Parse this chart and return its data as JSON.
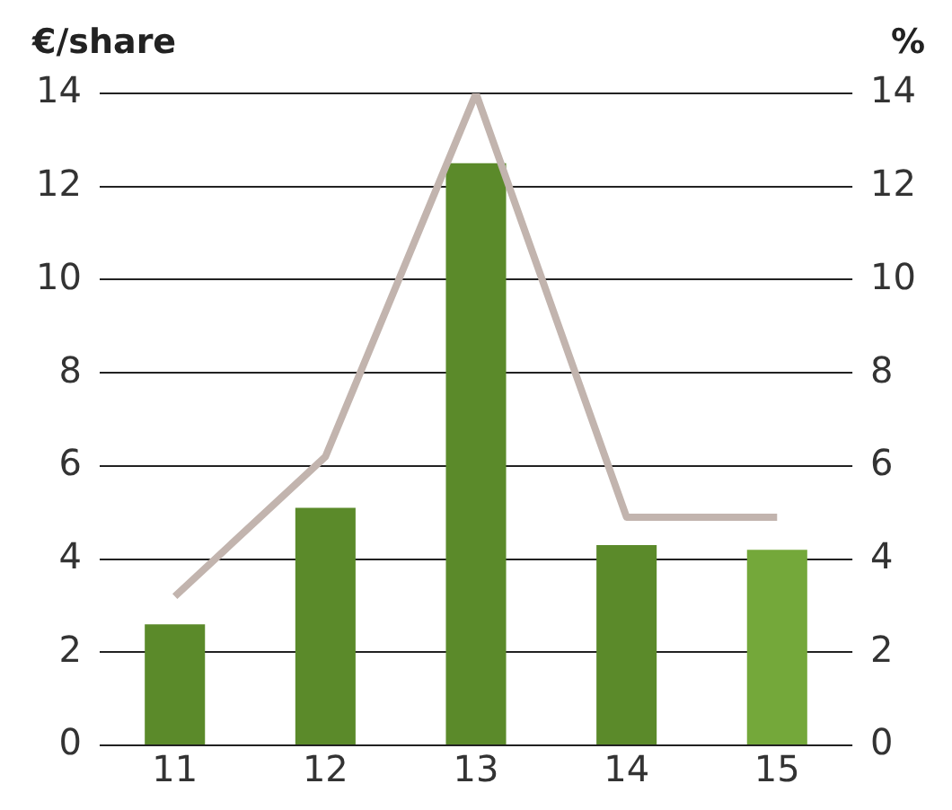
{
  "chart_data": {
    "type": "bar",
    "ylabel": "€/share",
    "y2label": "%",
    "categories": [
      "11",
      "12",
      "13",
      "14",
      "15"
    ],
    "series": [
      {
        "colors": [
          "#5b8a2a",
          "#5b8a2a",
          "#5b8a2a",
          "#5b8a2a",
          "#74a83a"
        ],
        "values": [
          2.6,
          5.1,
          12.5,
          4.3,
          4.2
        ]
      },
      {
        "type": "line",
        "axis": "y2",
        "color": "#c2b4ae",
        "values": [
          3.2,
          6.2,
          14,
          4.9,
          4.9
        ],
        "marker": "none"
      }
    ],
    "ylim": [
      0,
      14
    ],
    "yticks": [
      0,
      2,
      4,
      6,
      8,
      10,
      12,
      14
    ],
    "y2lim": [
      0,
      14
    ],
    "y2ticks": [
      0,
      2,
      4,
      6,
      8,
      10,
      12,
      14
    ],
    "grid": "y",
    "legend": false
  }
}
